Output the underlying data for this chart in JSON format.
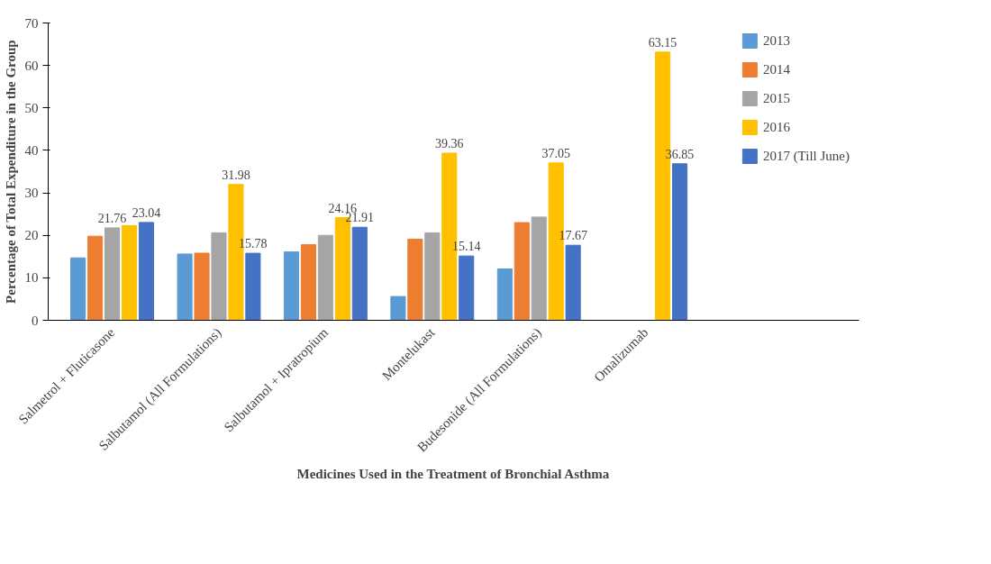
{
  "chart_data": {
    "type": "bar",
    "xlabel": "Medicines Used in the Treatment of Bronchial Asthma",
    "ylabel": "Percentage of Total Expenditure in the Group",
    "categories": [
      "Salmetrol + Fluticasone",
      "Salbutamol (All Formulations)",
      "Salbutamol + Ipratropium",
      "Montelukast",
      "Budesonide (All Formulations)",
      "Omalizumab"
    ],
    "series": [
      {
        "name": "2013",
        "color": "#5b9bd5",
        "values": [
          14.7,
          15.6,
          16.1,
          5.6,
          12.1,
          0
        ]
      },
      {
        "name": "2014",
        "color": "#ed7d31",
        "values": [
          19.8,
          15.8,
          17.8,
          19.1,
          23.0,
          0
        ]
      },
      {
        "name": "2015",
        "color": "#a5a5a5",
        "values": [
          21.76,
          20.6,
          20.0,
          20.6,
          24.3,
          0
        ],
        "value_labels": [
          "21.76",
          null,
          null,
          null,
          null,
          null
        ]
      },
      {
        "name": "2016",
        "color": "#ffc000",
        "values": [
          22.3,
          31.98,
          24.16,
          39.36,
          37.05,
          63.15
        ],
        "value_labels": [
          null,
          "31.98",
          "24.16",
          "39.36",
          "37.05",
          "63.15"
        ]
      },
      {
        "name": "2017 (Till June)",
        "color": "#4472c4",
        "values": [
          23.04,
          15.78,
          21.91,
          15.14,
          17.67,
          36.85
        ],
        "value_labels": [
          "23.04",
          "15.78",
          "21.91",
          "15.14",
          "17.67",
          "36.85"
        ]
      }
    ],
    "ylim": [
      0,
      70
    ],
    "yticks": [
      0,
      10,
      20,
      30,
      40,
      50,
      60,
      70
    ],
    "grid": false,
    "legend": "top right"
  }
}
